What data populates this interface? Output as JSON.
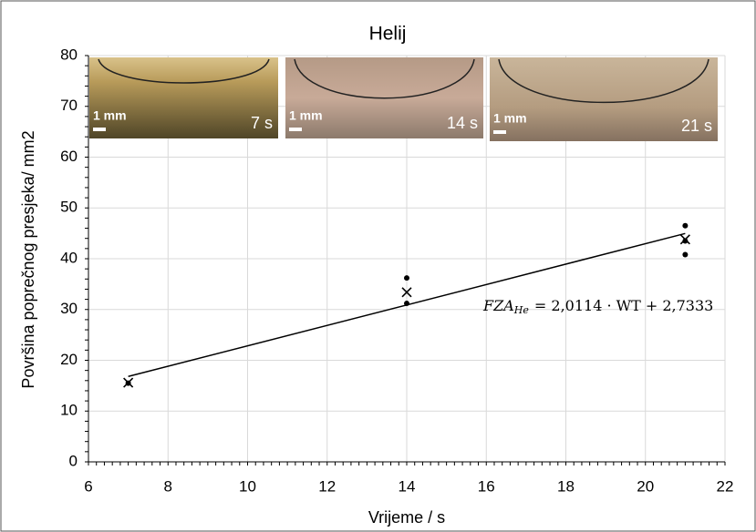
{
  "chart_data": {
    "type": "scatter",
    "title": "Helij",
    "x_label": "Vrijeme / s",
    "y_label": "Površina poprečnog presjeka/ mm2",
    "xlim": [
      6,
      22
    ],
    "xticks": [
      6,
      8,
      10,
      12,
      14,
      16,
      18,
      20,
      22
    ],
    "ylim": [
      0,
      80
    ],
    "yticks": [
      0,
      10,
      20,
      30,
      40,
      50,
      60,
      70,
      80
    ],
    "grid": true,
    "series": [
      {
        "color": "#000000",
        "marker": "dot",
        "x": [
          7,
          14,
          14,
          21,
          21,
          21
        ],
        "values": [
          15.5,
          36.2,
          31.2,
          46.5,
          43.5,
          40.8
        ]
      },
      {
        "color": "#000000",
        "marker": "cross",
        "x": [
          7,
          14,
          21
        ],
        "values": [
          15.6,
          33.4,
          43.8
        ]
      }
    ],
    "trendline": {
      "color": "#000000",
      "x": [
        7,
        21
      ],
      "values": [
        16.81,
        44.97
      ]
    },
    "annotation": {
      "lhs": "FZA",
      "sub": "He",
      "rhs": "= 2,0114 · WT + 2,7333"
    },
    "insets": [
      {
        "scale": "1 mm",
        "label": "7 s"
      },
      {
        "scale": "1 mm",
        "label": "14 s"
      },
      {
        "scale": "1 mm",
        "label": "21 s"
      }
    ]
  }
}
